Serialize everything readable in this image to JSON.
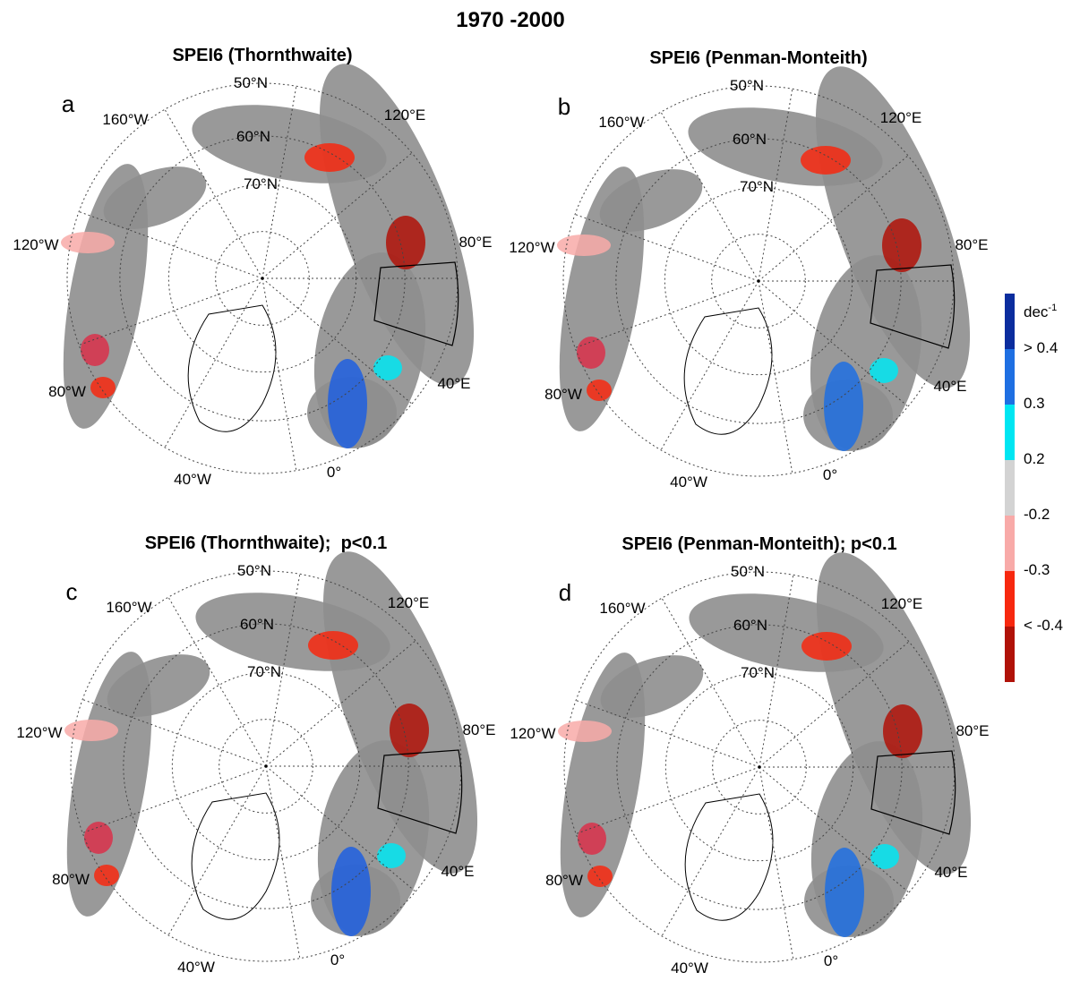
{
  "title": "1970 -2000",
  "panels": [
    {
      "letter": "a",
      "title": "SPEI6 (Thornthwaite)",
      "lat_labels": [
        "50°N",
        "60°N",
        "70°N"
      ],
      "lon_labels": [
        "160°W",
        "120°E",
        "120°W",
        "80°E",
        "80°W",
        "40°E",
        "40°W",
        "0°"
      ]
    },
    {
      "letter": "b",
      "title": "SPEI6 (Penman-Monteith)",
      "lat_labels": [
        "50°N",
        "60°N",
        "70°N"
      ],
      "lon_labels": [
        "160°W",
        "120°E",
        "120°W",
        "80°E",
        "80°W",
        "40°E",
        "40°W",
        "0°"
      ]
    },
    {
      "letter": "c",
      "title": "SPEI6 (Thornthwaite);  p<0.1",
      "lat_labels": [
        "50°N",
        "60°N",
        "70°N"
      ],
      "lon_labels": [
        "160°W",
        "120°E",
        "120°W",
        "80°E",
        "80°W",
        "40°E",
        "40°W",
        "0°"
      ]
    },
    {
      "letter": "d",
      "title": "SPEI6 (Penman-Monteith); p<0.1",
      "lat_labels": [
        "50°N",
        "60°N",
        "70°N"
      ],
      "lon_labels": [
        "160°W",
        "120°E",
        "120°W",
        "80°E",
        "80°W",
        "40°E",
        "40°W",
        "0°"
      ]
    }
  ],
  "colorbar": {
    "unit": "dec",
    "unit_exponent": "-1",
    "labels": [
      "> 0.4",
      "0.3",
      "0.2",
      "-0.2",
      "-0.3",
      "< -0.4"
    ],
    "colors": [
      "#0b2d9e",
      "#1e6fe2",
      "#00e6f2",
      "#d3d3d3",
      "#f8aaa8",
      "#f7280f",
      "#b01208"
    ]
  }
}
